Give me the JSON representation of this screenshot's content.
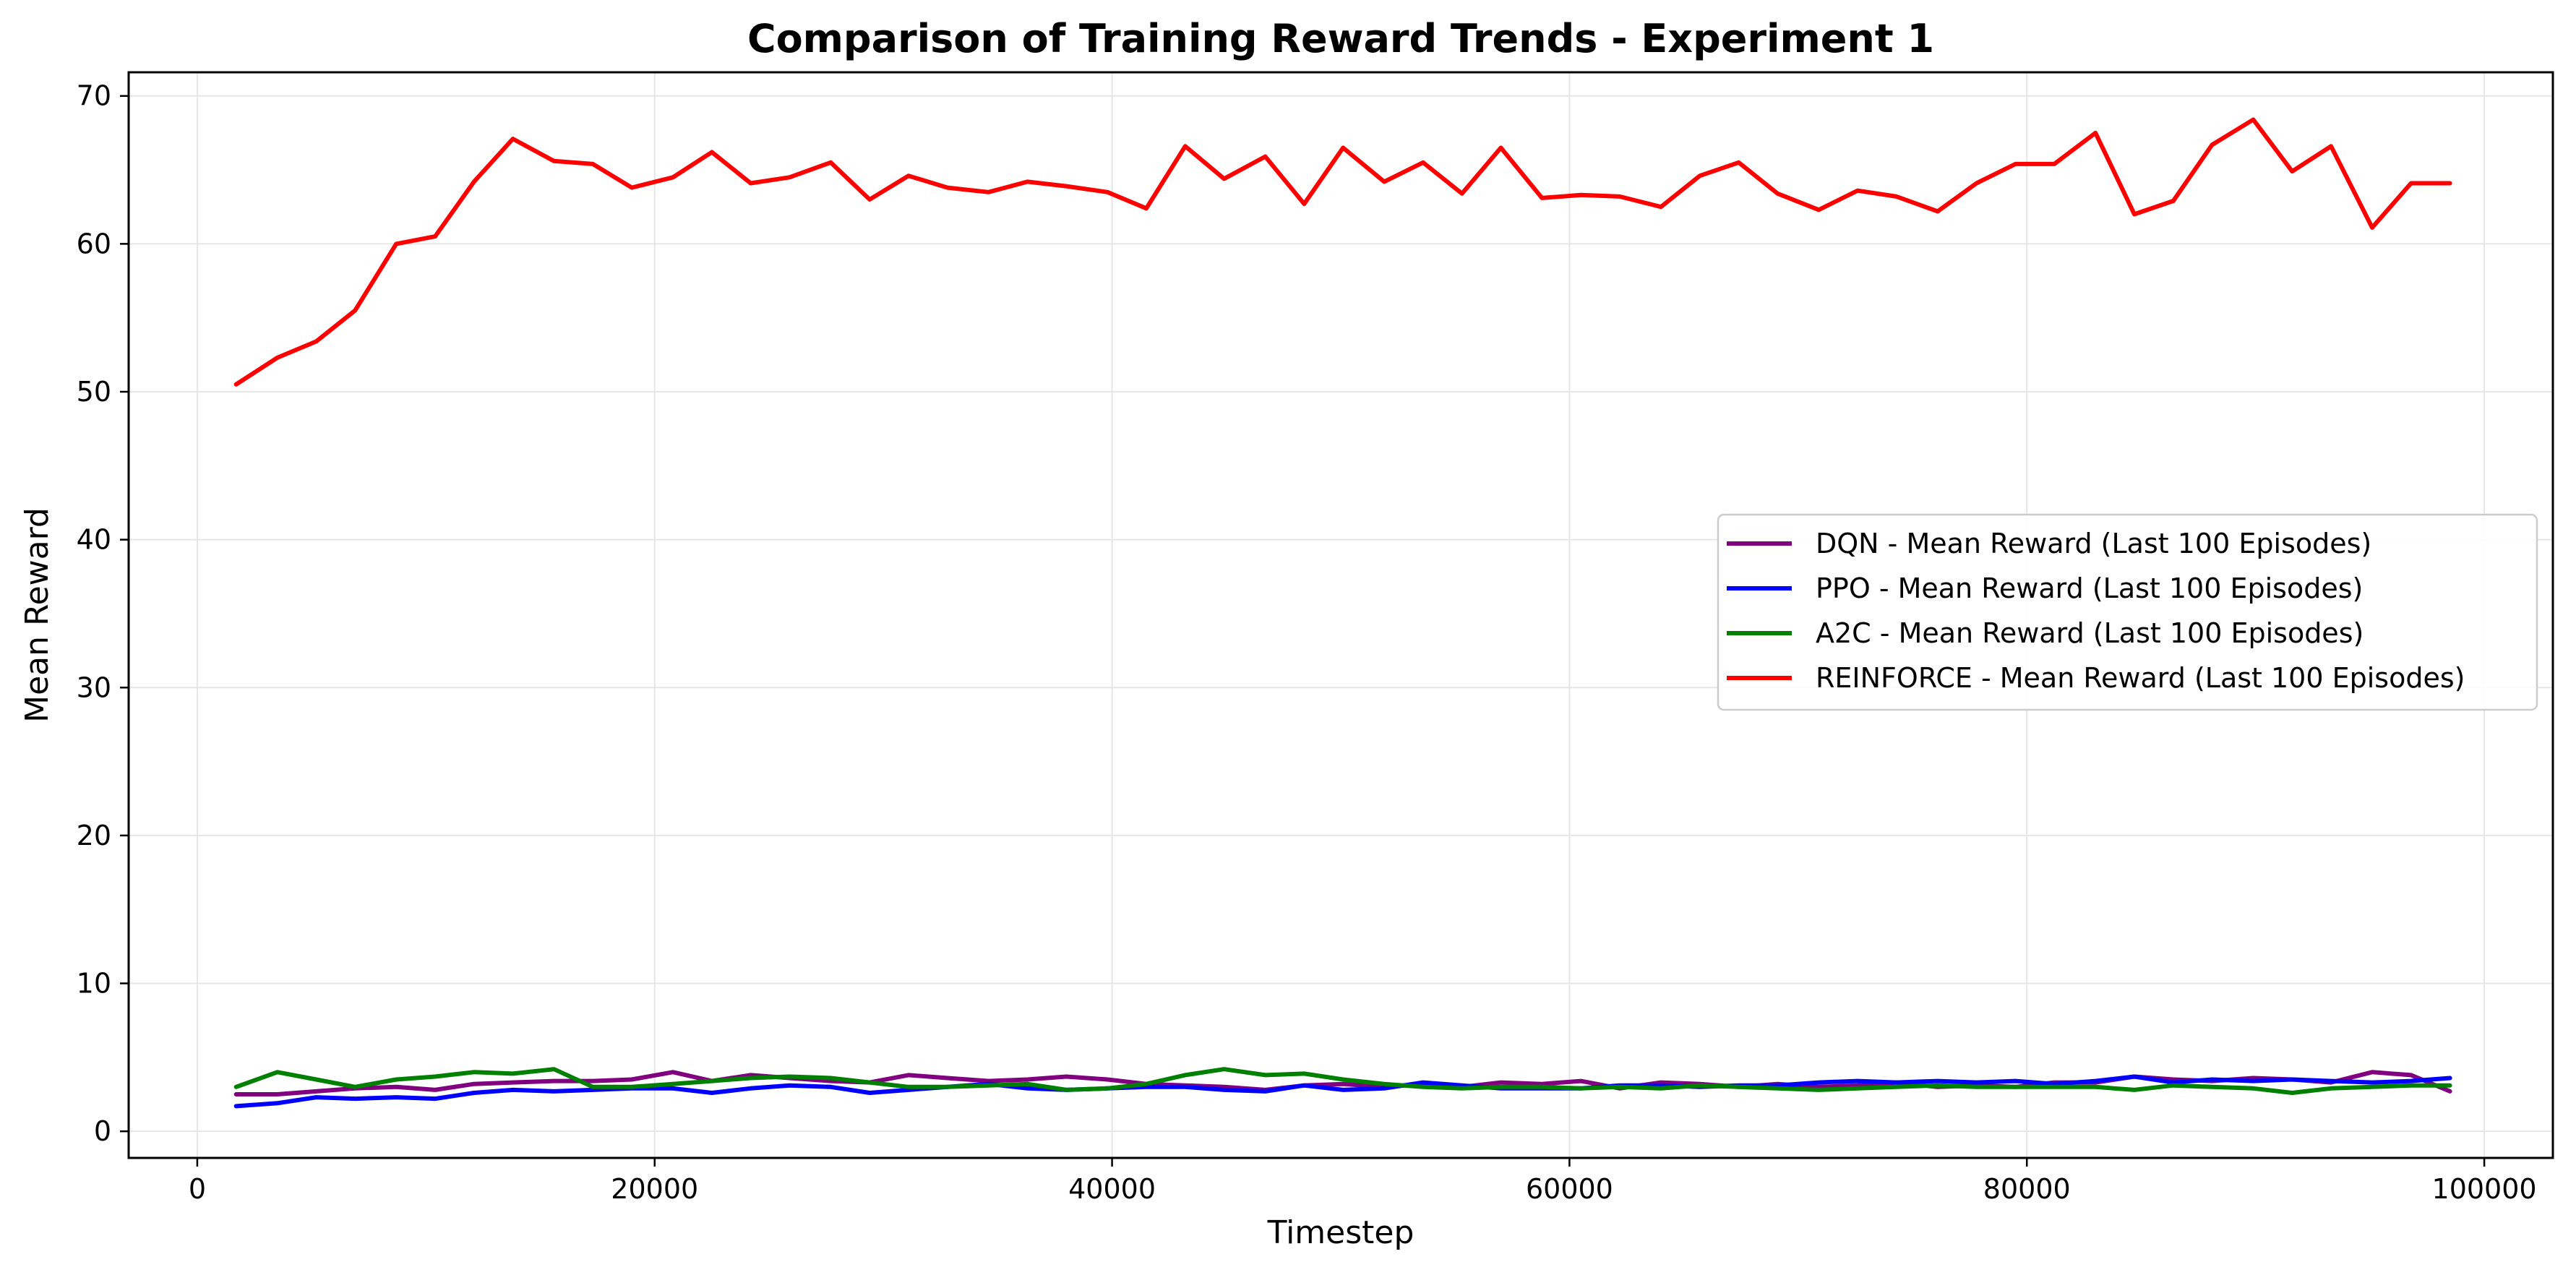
{
  "chart_data": {
    "type": "line",
    "title": "Comparison of Training Reward Trends - Experiment 1",
    "xlabel": "Timestep",
    "ylabel": "Mean Reward",
    "xlim": [
      -3000,
      103000
    ],
    "ylim": [
      -1.8,
      71.6
    ],
    "xticks": [
      0,
      20000,
      40000,
      60000,
      80000,
      100000
    ],
    "yticks": [
      0,
      10,
      20,
      30,
      40,
      50,
      60,
      70
    ],
    "grid": true,
    "legend_position": "center-right",
    "x": [
      1700,
      3500,
      5200,
      6900,
      8700,
      10400,
      12100,
      13800,
      15600,
      17300,
      19000,
      20800,
      22500,
      24200,
      25900,
      27700,
      29400,
      31100,
      32800,
      34600,
      36300,
      38000,
      39800,
      41500,
      43200,
      44900,
      46700,
      48400,
      50100,
      51900,
      53600,
      55300,
      57000,
      58800,
      60500,
      62200,
      64000,
      65700,
      67400,
      69100,
      70900,
      72600,
      74300,
      76100,
      77800,
      79500,
      81200,
      83000,
      84700,
      86400,
      88100,
      89900,
      91600,
      93300,
      95100,
      96800,
      98500
    ],
    "series": [
      {
        "name": "DQN - Mean Reward (Last 100 Episodes)",
        "color": "#800080",
        "values": [
          2.5,
          2.5,
          2.7,
          2.9,
          3.0,
          2.8,
          3.2,
          3.3,
          3.4,
          3.4,
          3.5,
          4.0,
          3.4,
          3.8,
          3.6,
          3.4,
          3.3,
          3.8,
          3.6,
          3.4,
          3.5,
          3.7,
          3.5,
          3.2,
          3.1,
          3.0,
          2.8,
          3.1,
          3.2,
          3.0,
          3.2,
          3.0,
          3.3,
          3.2,
          3.4,
          2.9,
          3.3,
          3.2,
          3.0,
          3.2,
          3.0,
          3.1,
          3.3,
          3.0,
          3.1,
          3.0,
          3.3,
          3.3,
          3.7,
          3.5,
          3.4,
          3.6,
          3.5,
          3.3,
          4.0,
          3.8,
          2.7
        ]
      },
      {
        "name": "PPO - Mean Reward (Last 100 Episodes)",
        "color": "#0000ff",
        "values": [
          1.7,
          1.9,
          2.3,
          2.2,
          2.3,
          2.2,
          2.6,
          2.8,
          2.7,
          2.8,
          2.9,
          2.9,
          2.6,
          2.9,
          3.1,
          3.0,
          2.6,
          2.8,
          3.0,
          3.2,
          2.9,
          2.8,
          2.9,
          3.0,
          3.0,
          2.8,
          2.7,
          3.1,
          2.8,
          2.9,
          3.3,
          3.1,
          2.9,
          2.9,
          2.9,
          3.1,
          3.1,
          3.0,
          3.1,
          3.1,
          3.3,
          3.4,
          3.3,
          3.4,
          3.3,
          3.4,
          3.2,
          3.4,
          3.7,
          3.3,
          3.5,
          3.4,
          3.5,
          3.4,
          3.3,
          3.4,
          3.6
        ]
      },
      {
        "name": "A2C - Mean Reward (Last 100 Episodes)",
        "color": "#008000",
        "values": [
          3.0,
          4.0,
          3.5,
          3.0,
          3.5,
          3.7,
          4.0,
          3.9,
          4.2,
          3.0,
          3.0,
          3.2,
          3.4,
          3.6,
          3.7,
          3.6,
          3.3,
          3.0,
          3.0,
          3.1,
          3.2,
          2.8,
          2.9,
          3.2,
          3.8,
          4.2,
          3.8,
          3.9,
          3.5,
          3.2,
          3.0,
          2.9,
          3.0,
          3.0,
          2.9,
          3.0,
          2.9,
          3.1,
          3.0,
          2.9,
          2.8,
          2.9,
          3.0,
          3.1,
          3.0,
          3.0,
          3.0,
          3.0,
          2.8,
          3.1,
          3.0,
          2.9,
          2.6,
          2.9,
          3.0,
          3.1,
          3.1
        ]
      },
      {
        "name": "REINFORCE - Mean Reward (Last 100 Episodes)",
        "color": "#ff0000",
        "values": [
          50.5,
          52.3,
          53.4,
          55.5,
          60.0,
          60.5,
          64.2,
          67.1,
          65.6,
          65.4,
          63.8,
          64.5,
          66.2,
          64.1,
          64.5,
          65.5,
          63.0,
          64.6,
          63.8,
          63.5,
          64.2,
          63.9,
          63.5,
          62.4,
          66.6,
          64.4,
          65.9,
          62.7,
          66.5,
          64.2,
          65.5,
          63.4,
          66.5,
          63.1,
          63.3,
          63.2,
          62.5,
          64.6,
          65.5,
          63.4,
          62.3,
          63.6,
          63.2,
          62.2,
          64.1,
          65.4,
          65.4,
          67.5,
          62.0,
          62.9,
          66.7,
          68.4,
          64.9,
          66.6,
          61.1,
          64.1,
          64.1
        ]
      }
    ]
  }
}
